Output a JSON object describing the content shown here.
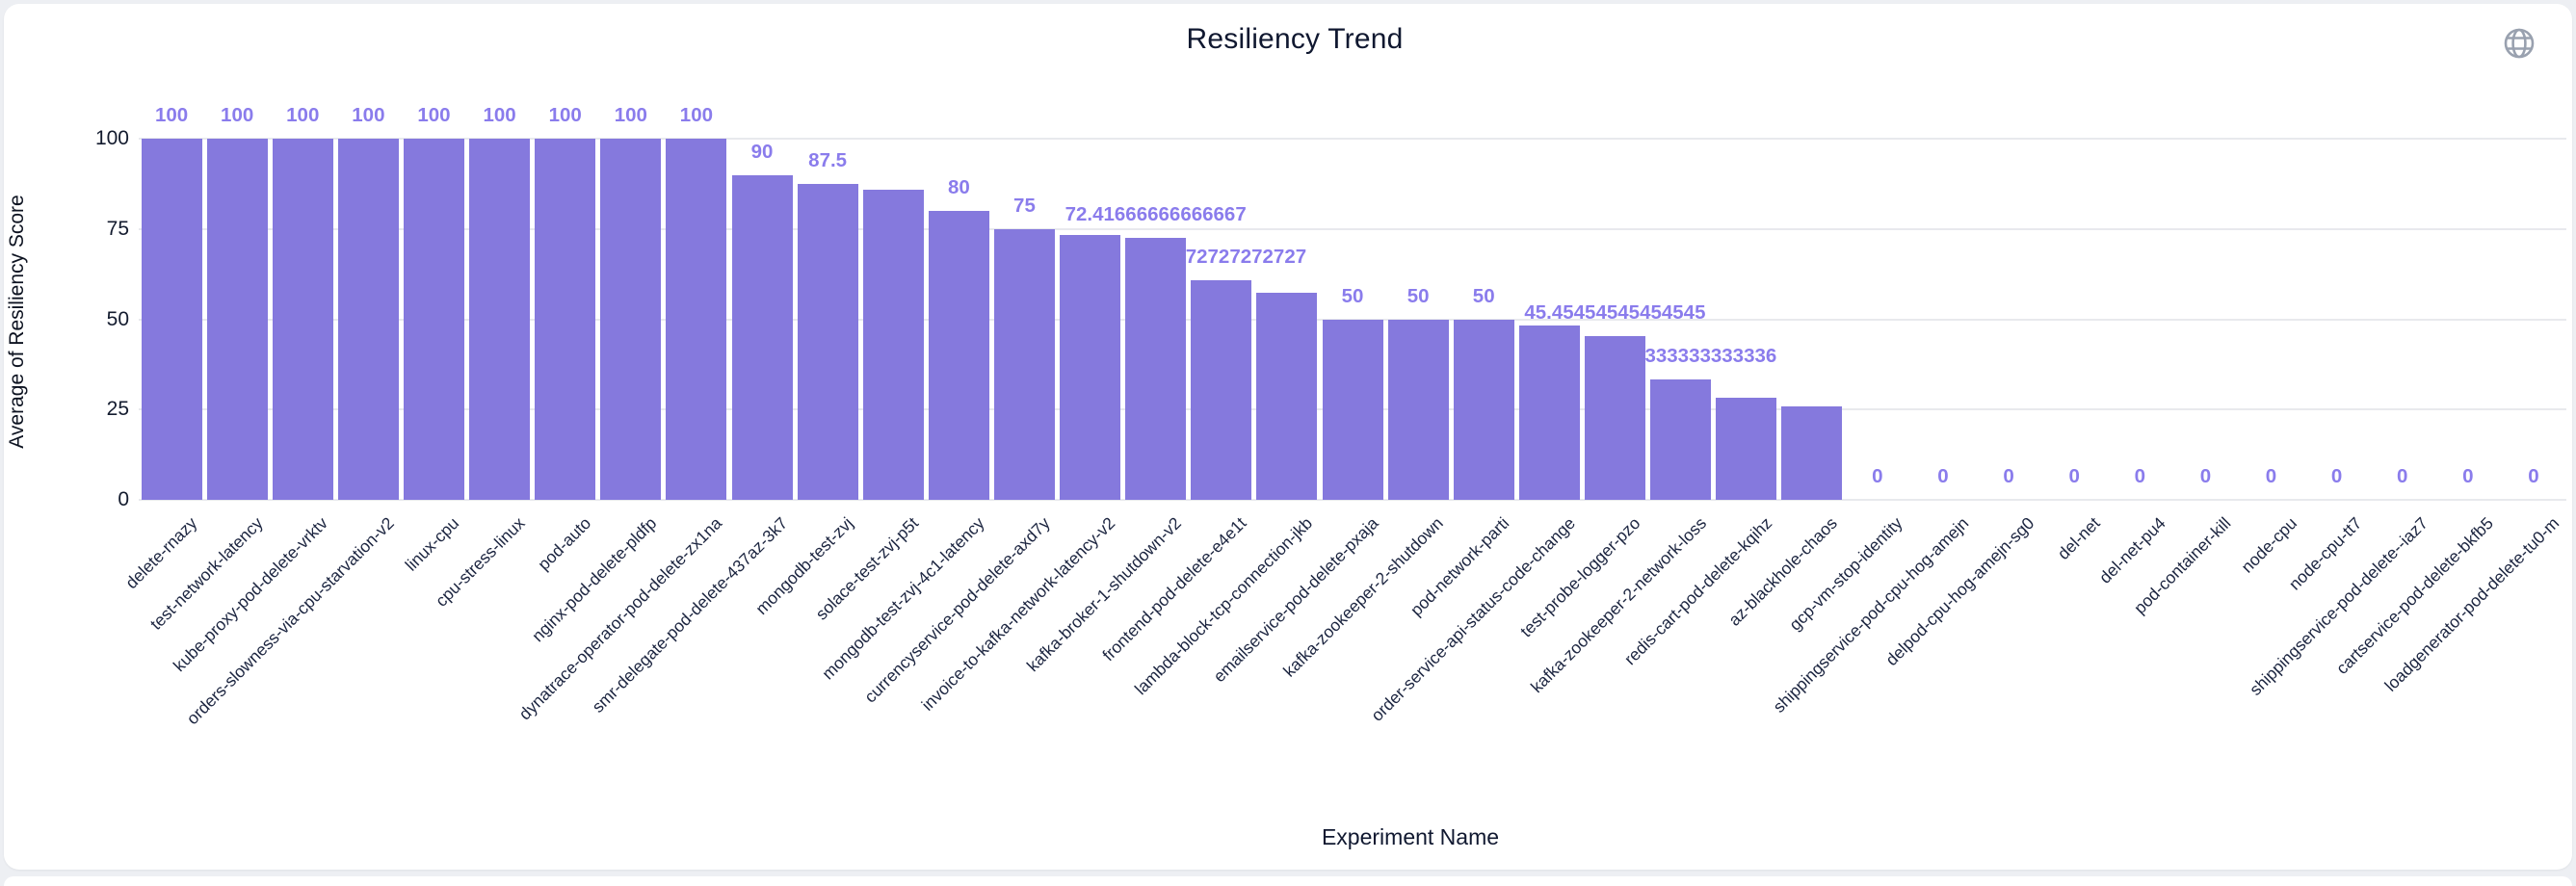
{
  "page": {
    "background": "#edeff3",
    "card_background": "#ffffff"
  },
  "header": {
    "title": "Resiliency Trend",
    "globe_icon": "globe-icon",
    "globe_color": "#99a1af"
  },
  "chart_data": {
    "type": "bar",
    "title": "Resiliency Trend",
    "xlabel": "Experiment Name",
    "ylabel": "Average of Resiliency Score",
    "ylim": [
      0,
      100
    ],
    "yticks": [
      0,
      25,
      50,
      75,
      100
    ],
    "grid": true,
    "legend": "none",
    "bar_color": "#8579dd",
    "value_label_color": "#8a7cec",
    "categories": [
      "delete-rnazy",
      "test-network-latency",
      "kube-proxy-pod-delete-vrktv",
      "orders-slowness-via-cpu-starvation-v2",
      "linux-cpu",
      "cpu-stress-linux",
      "pod-auto",
      "nginx-pod-delete-pldfp",
      "dynatrace-operator-pod-delete-zx1na",
      "smr-delegate-pod-delete-437az-3k7",
      "mongodb-test-zvj",
      "solace-test-zvj-p5t",
      "mongodb-test-zvj-4c1-latency",
      "currencyservice-pod-delete-axd7y",
      "invoice-to-kafka-network-latency-v2",
      "kafka-broker-1-shutdown-v2",
      "frontend-pod-delete-e4e1t",
      "lambda-block-tcp-connection-jkb",
      "emailservice-pod-delete-pxaja",
      "kafka-zookeeper-2-shutdown",
      "pod-network-parti",
      "order-service-api-status-code-change",
      "test-probe-logger-pzo",
      "kafka-zookeeper-2-network-loss",
      "redis-cart-pod-delete-kqihz",
      "az-blackhole-chaos",
      "gcp-vm-stop-identity",
      "shippingservice-pod-cpu-hog-amejn",
      "delpod-cpu-hog-amejn-sg0",
      "del-net",
      "del-net-pu4",
      "pod-container-kill",
      "node-cpu",
      "node-cpu-tt7",
      "shippingservice-pod-delete--iaz7",
      "cartservice-pod-delete-bkfb5",
      "loadgenerator-pod-delete-tu0-m"
    ],
    "values": [
      100,
      100,
      100,
      100,
      100,
      100,
      100,
      100,
      100,
      90,
      87.5,
      85.8,
      80,
      75,
      73.3,
      72.41666666666667,
      60.7272727272727,
      57.3,
      50,
      50,
      50,
      48.3,
      45.45454545454545,
      33.333333333333336,
      28.3,
      25.8,
      0,
      0,
      0,
      0,
      0,
      0,
      0,
      0,
      0,
      0,
      0
    ],
    "bar_labels": [
      "100",
      "100",
      "100",
      "100",
      "100",
      "100",
      "100",
      "100",
      "100",
      "90",
      "87.5",
      null,
      "80",
      "75",
      null,
      "72.41666666666667",
      "60.7272727272727",
      null,
      "50",
      "50",
      "50",
      null,
      "45.45454545454545",
      "33.333333333333336",
      null,
      null,
      "0",
      "0",
      "0",
      "0",
      "0",
      "0",
      "0",
      "0",
      "0",
      "0",
      "0"
    ]
  }
}
